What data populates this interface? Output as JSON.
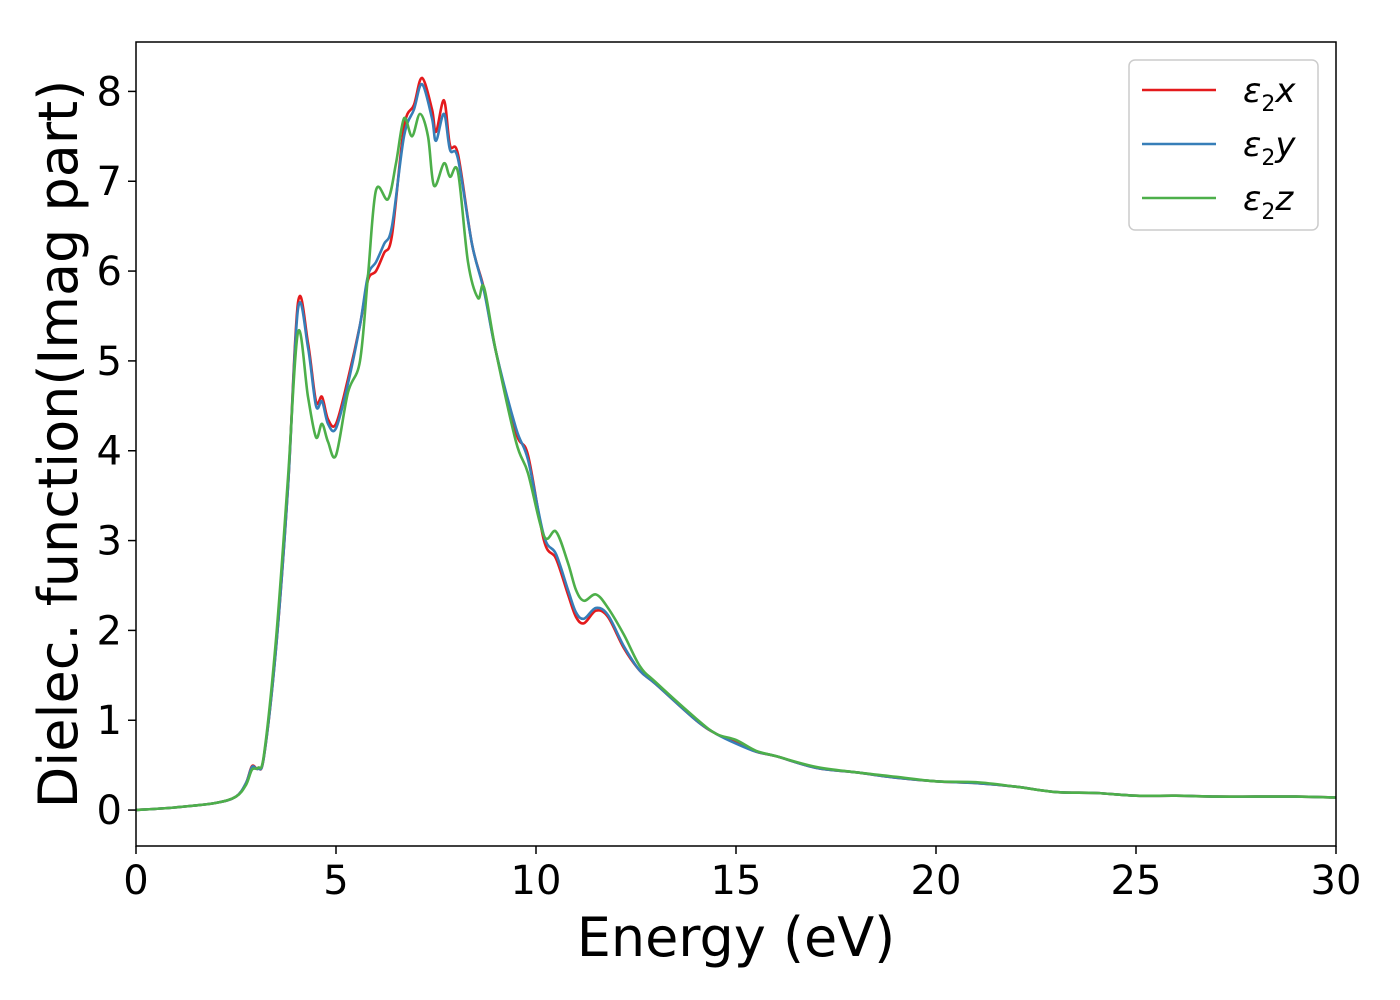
{
  "chart_data": {
    "type": "line",
    "title": "",
    "xlabel": "Energy (eV)",
    "ylabel": "Dielec. function(Imag part)",
    "xlim": [
      0,
      30
    ],
    "ylim": [
      -0.4,
      8.55
    ],
    "xticks": [
      "0",
      "5",
      "10",
      "15",
      "20",
      "25",
      "30"
    ],
    "yticks": [
      "0",
      "1",
      "2",
      "3",
      "4",
      "5",
      "6",
      "7",
      "8"
    ],
    "grid": false,
    "legend_position": "top-right",
    "series": [
      {
        "name": "ε2x",
        "legend_symbol": "ε",
        "legend_sub": "2",
        "legend_var": "x",
        "color": "#e41a1c",
        "points": [
          [
            0,
            0.0
          ],
          [
            1,
            0.03
          ],
          [
            2,
            0.08
          ],
          [
            2.5,
            0.15
          ],
          [
            2.75,
            0.3
          ],
          [
            2.9,
            0.49
          ],
          [
            3.05,
            0.46
          ],
          [
            3.2,
            0.6
          ],
          [
            3.5,
            1.8
          ],
          [
            3.8,
            3.6
          ],
          [
            4.05,
            5.65
          ],
          [
            4.3,
            5.2
          ],
          [
            4.5,
            4.55
          ],
          [
            4.65,
            4.6
          ],
          [
            4.8,
            4.35
          ],
          [
            5.0,
            4.3
          ],
          [
            5.3,
            4.8
          ],
          [
            5.6,
            5.4
          ],
          [
            5.8,
            5.9
          ],
          [
            6.0,
            6.0
          ],
          [
            6.2,
            6.2
          ],
          [
            6.4,
            6.4
          ],
          [
            6.7,
            7.6
          ],
          [
            6.95,
            7.85
          ],
          [
            7.15,
            8.15
          ],
          [
            7.4,
            7.8
          ],
          [
            7.5,
            7.55
          ],
          [
            7.7,
            7.9
          ],
          [
            7.85,
            7.4
          ],
          [
            8.05,
            7.3
          ],
          [
            8.4,
            6.3
          ],
          [
            8.7,
            5.8
          ],
          [
            9.0,
            5.1
          ],
          [
            9.5,
            4.2
          ],
          [
            9.8,
            3.95
          ],
          [
            10.2,
            3.0
          ],
          [
            10.5,
            2.8
          ],
          [
            10.8,
            2.4
          ],
          [
            11.0,
            2.15
          ],
          [
            11.2,
            2.08
          ],
          [
            11.5,
            2.22
          ],
          [
            11.8,
            2.15
          ],
          [
            12.2,
            1.8
          ],
          [
            12.6,
            1.55
          ],
          [
            13.0,
            1.4
          ],
          [
            14.0,
            1.0
          ],
          [
            14.5,
            0.85
          ],
          [
            15.0,
            0.75
          ],
          [
            15.5,
            0.65
          ],
          [
            16.0,
            0.6
          ],
          [
            17.0,
            0.47
          ],
          [
            18.0,
            0.42
          ],
          [
            19.0,
            0.36
          ],
          [
            20.0,
            0.32
          ],
          [
            21.0,
            0.3
          ],
          [
            22.0,
            0.26
          ],
          [
            23.0,
            0.2
          ],
          [
            24.0,
            0.19
          ],
          [
            25.0,
            0.16
          ],
          [
            26.0,
            0.16
          ],
          [
            27.0,
            0.15
          ],
          [
            28.0,
            0.15
          ],
          [
            29.0,
            0.15
          ],
          [
            30.0,
            0.14
          ]
        ]
      },
      {
        "name": "ε2y",
        "legend_symbol": "ε",
        "legend_sub": "2",
        "legend_var": "y",
        "color": "#377eb8",
        "points": [
          [
            0,
            0.0
          ],
          [
            1,
            0.03
          ],
          [
            2,
            0.08
          ],
          [
            2.5,
            0.15
          ],
          [
            2.75,
            0.3
          ],
          [
            2.9,
            0.48
          ],
          [
            3.05,
            0.46
          ],
          [
            3.2,
            0.6
          ],
          [
            3.5,
            1.8
          ],
          [
            3.8,
            3.6
          ],
          [
            4.05,
            5.58
          ],
          [
            4.3,
            5.15
          ],
          [
            4.5,
            4.5
          ],
          [
            4.65,
            4.55
          ],
          [
            4.8,
            4.3
          ],
          [
            5.0,
            4.25
          ],
          [
            5.3,
            4.75
          ],
          [
            5.6,
            5.4
          ],
          [
            5.8,
            5.95
          ],
          [
            6.0,
            6.1
          ],
          [
            6.2,
            6.3
          ],
          [
            6.4,
            6.5
          ],
          [
            6.7,
            7.5
          ],
          [
            6.95,
            7.8
          ],
          [
            7.15,
            8.08
          ],
          [
            7.4,
            7.7
          ],
          [
            7.5,
            7.45
          ],
          [
            7.7,
            7.75
          ],
          [
            7.85,
            7.35
          ],
          [
            8.05,
            7.25
          ],
          [
            8.4,
            6.3
          ],
          [
            8.7,
            5.78
          ],
          [
            9.0,
            5.1
          ],
          [
            9.5,
            4.25
          ],
          [
            9.8,
            3.9
          ],
          [
            10.2,
            3.05
          ],
          [
            10.5,
            2.85
          ],
          [
            10.8,
            2.45
          ],
          [
            11.0,
            2.2
          ],
          [
            11.2,
            2.13
          ],
          [
            11.5,
            2.25
          ],
          [
            11.8,
            2.17
          ],
          [
            12.2,
            1.82
          ],
          [
            12.6,
            1.55
          ],
          [
            13.0,
            1.4
          ],
          [
            14.0,
            1.0
          ],
          [
            14.5,
            0.85
          ],
          [
            15.0,
            0.74
          ],
          [
            15.5,
            0.65
          ],
          [
            16.0,
            0.6
          ],
          [
            17.0,
            0.47
          ],
          [
            18.0,
            0.42
          ],
          [
            19.0,
            0.36
          ],
          [
            20.0,
            0.32
          ],
          [
            21.0,
            0.3
          ],
          [
            22.0,
            0.26
          ],
          [
            23.0,
            0.2
          ],
          [
            24.0,
            0.19
          ],
          [
            25.0,
            0.16
          ],
          [
            26.0,
            0.16
          ],
          [
            27.0,
            0.15
          ],
          [
            28.0,
            0.15
          ],
          [
            29.0,
            0.15
          ],
          [
            30.0,
            0.14
          ]
        ]
      },
      {
        "name": "ε2z",
        "legend_symbol": "ε",
        "legend_sub": "2",
        "legend_var": "z",
        "color": "#4daf4a",
        "points": [
          [
            0,
            0.0
          ],
          [
            1,
            0.03
          ],
          [
            2,
            0.08
          ],
          [
            2.5,
            0.15
          ],
          [
            2.75,
            0.28
          ],
          [
            2.9,
            0.45
          ],
          [
            3.05,
            0.47
          ],
          [
            3.2,
            0.62
          ],
          [
            3.5,
            1.9
          ],
          [
            3.8,
            3.7
          ],
          [
            4.05,
            5.32
          ],
          [
            4.3,
            4.6
          ],
          [
            4.5,
            4.15
          ],
          [
            4.65,
            4.3
          ],
          [
            4.8,
            4.1
          ],
          [
            5.0,
            3.95
          ],
          [
            5.3,
            4.65
          ],
          [
            5.6,
            5.0
          ],
          [
            5.8,
            5.95
          ],
          [
            6.0,
            6.9
          ],
          [
            6.3,
            6.8
          ],
          [
            6.5,
            7.2
          ],
          [
            6.7,
            7.7
          ],
          [
            6.9,
            7.5
          ],
          [
            7.1,
            7.75
          ],
          [
            7.3,
            7.5
          ],
          [
            7.45,
            6.95
          ],
          [
            7.7,
            7.2
          ],
          [
            7.85,
            7.05
          ],
          [
            8.05,
            7.1
          ],
          [
            8.3,
            6.1
          ],
          [
            8.55,
            5.7
          ],
          [
            8.7,
            5.82
          ],
          [
            9.0,
            5.1
          ],
          [
            9.5,
            4.1
          ],
          [
            9.8,
            3.75
          ],
          [
            10.2,
            3.05
          ],
          [
            10.5,
            3.1
          ],
          [
            10.8,
            2.75
          ],
          [
            11.0,
            2.45
          ],
          [
            11.2,
            2.33
          ],
          [
            11.5,
            2.4
          ],
          [
            11.8,
            2.25
          ],
          [
            12.2,
            1.95
          ],
          [
            12.6,
            1.6
          ],
          [
            13.0,
            1.42
          ],
          [
            14.0,
            1.02
          ],
          [
            14.5,
            0.85
          ],
          [
            15.0,
            0.78
          ],
          [
            15.5,
            0.66
          ],
          [
            16.0,
            0.6
          ],
          [
            17.0,
            0.48
          ],
          [
            18.0,
            0.42
          ],
          [
            19.0,
            0.37
          ],
          [
            20.0,
            0.32
          ],
          [
            21.0,
            0.31
          ],
          [
            22.0,
            0.26
          ],
          [
            23.0,
            0.2
          ],
          [
            24.0,
            0.19
          ],
          [
            25.0,
            0.16
          ],
          [
            26.0,
            0.16
          ],
          [
            27.0,
            0.15
          ],
          [
            28.0,
            0.15
          ],
          [
            29.0,
            0.15
          ],
          [
            30.0,
            0.14
          ]
        ]
      }
    ]
  }
}
